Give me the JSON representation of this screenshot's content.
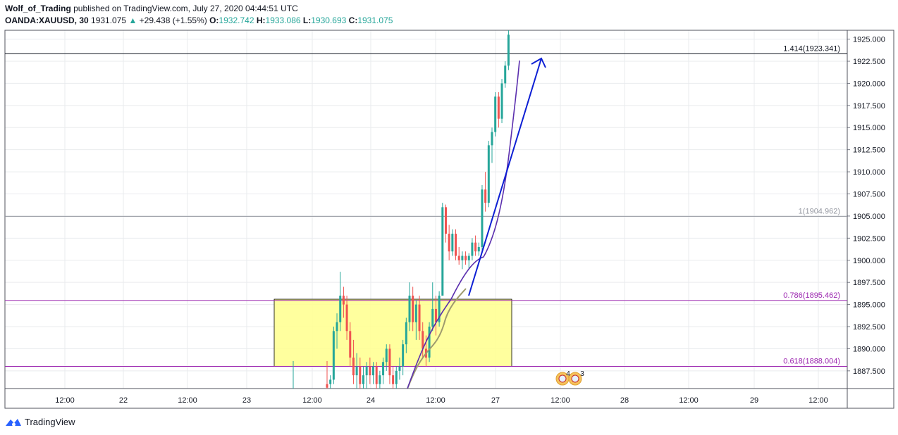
{
  "header": {
    "author": "Wolf_of_Trading",
    "published_text": " published on TradingView.com, July 27, 2020 04:44:51 UTC",
    "symbol": "OANDA:XAUUSD, 30",
    "last": "1931.075",
    "change_arrow": "▲",
    "change": "+29.438 (+1.55%)",
    "o_label": "O:",
    "open": "1932.742",
    "h_label": "H:",
    "high": "1933.086",
    "l_label": "L:",
    "low": "1930.693",
    "c_label": "C:",
    "close": "1931.075"
  },
  "footer": {
    "brand": "TradingView",
    "logo_icon": "tradingview-logo-icon"
  },
  "colors": {
    "up": "#26a69a",
    "down": "#ef5350",
    "ma_purple": "#5b2fae",
    "ma_gray": "#9e9a6e",
    "arrow": "#0d1fd4",
    "fib_purple": "#9c27b0",
    "zone_fill": "#ffff8d",
    "grid": "#e9ebee"
  },
  "chart_data": {
    "type": "candlestick",
    "symbol": "OANDA:XAUUSD",
    "timeframe": "30",
    "y_range": [
      1885.5,
      1926.0
    ],
    "y_ticks": [
      "1925.000",
      "1922.500",
      "1920.000",
      "1917.500",
      "1915.000",
      "1912.500",
      "1910.000",
      "1907.500",
      "1905.000",
      "1902.500",
      "1900.000",
      "1897.500",
      "1895.000",
      "1892.500",
      "1890.000",
      "1887.500"
    ],
    "x_ticks": [
      "12:00",
      "22",
      "12:00",
      "23",
      "12:00",
      "24",
      "12:00",
      "27",
      "12:00",
      "28",
      "12:00",
      "29",
      "12:00"
    ],
    "fib_levels": [
      {
        "ratio": "1.414",
        "price": 1923.341,
        "label": "1.414(1923.341)",
        "color": "#131722"
      },
      {
        "ratio": "1",
        "price": 1904.962,
        "label": "1(1904.962)",
        "color": "#9598a1"
      },
      {
        "ratio": "0.786",
        "price": 1895.462,
        "label": "0.786(1895.462)",
        "color": "#9c27b0"
      },
      {
        "ratio": "0.618",
        "price": 1888.004,
        "label": "0.618(1888.004)",
        "color": "#9c27b0"
      }
    ],
    "zone": {
      "price_top": 1895.6,
      "price_bottom": 1888.0,
      "x_start": "23 09:00",
      "x_end": "27 06:00"
    },
    "events": [
      {
        "text": "4"
      },
      {
        "text": "3"
      }
    ],
    "candles": [
      [
        1886.0,
        1888.6,
        1885.0,
        1885.6
      ],
      [
        1886.0,
        1887.0,
        1885.0,
        1886.5
      ],
      [
        1886.5,
        1892.5,
        1886.0,
        1892.0
      ],
      [
        1892.0,
        1894.0,
        1890.0,
        1893.0
      ],
      [
        1893.0,
        1898.7,
        1892.0,
        1896.0
      ],
      [
        1896.0,
        1897.0,
        1893.5,
        1895.0
      ],
      [
        1895.0,
        1896.0,
        1891.0,
        1892.0
      ],
      [
        1892.0,
        1893.0,
        1888.0,
        1889.0
      ],
      [
        1889.0,
        1891.0,
        1886.0,
        1887.0
      ],
      [
        1887.0,
        1889.5,
        1885.5,
        1888.0
      ],
      [
        1888.0,
        1889.0,
        1885.0,
        1886.0
      ],
      [
        1886.0,
        1888.0,
        1885.0,
        1887.0
      ],
      [
        1887.0,
        1888.5,
        1885.5,
        1888.0
      ],
      [
        1888.0,
        1889.0,
        1886.0,
        1887.0
      ],
      [
        1887.0,
        1888.5,
        1886.0,
        1888.0
      ],
      [
        1888.0,
        1888.5,
        1885.5,
        1886.0
      ],
      [
        1886.0,
        1887.5,
        1885.0,
        1887.0
      ],
      [
        1887.0,
        1889.0,
        1886.0,
        1888.5
      ],
      [
        1888.5,
        1890.5,
        1887.5,
        1890.0
      ],
      [
        1890.0,
        1890.5,
        1886.0,
        1887.0
      ],
      [
        1887.0,
        1888.0,
        1885.5,
        1886.0
      ],
      [
        1886.0,
        1888.0,
        1885.0,
        1887.5
      ],
      [
        1887.5,
        1889.0,
        1886.5,
        1888.0
      ],
      [
        1888.0,
        1891.0,
        1887.0,
        1890.5
      ],
      [
        1890.5,
        1893.5,
        1889.5,
        1893.0
      ],
      [
        1893.0,
        1897.5,
        1892.0,
        1896.0
      ],
      [
        1896.0,
        1897.0,
        1892.0,
        1893.0
      ],
      [
        1893.0,
        1895.5,
        1891.0,
        1895.0
      ],
      [
        1895.0,
        1896.0,
        1891.0,
        1892.0
      ],
      [
        1892.0,
        1893.0,
        1889.0,
        1890.0
      ],
      [
        1890.0,
        1891.5,
        1888.0,
        1889.0
      ],
      [
        1889.0,
        1893.0,
        1888.5,
        1892.5
      ],
      [
        1892.5,
        1897.5,
        1892.0,
        1894.5
      ],
      [
        1894.5,
        1896.0,
        1891.5,
        1893.0
      ],
      [
        1893.0,
        1896.5,
        1892.5,
        1896.0
      ],
      [
        1896.0,
        1906.5,
        1896.0,
        1906.0
      ],
      [
        1906.0,
        1906.3,
        1902.0,
        1903.0
      ],
      [
        1903.0,
        1904.0,
        1900.0,
        1901.0
      ],
      [
        1901.0,
        1903.5,
        1900.5,
        1903.0
      ],
      [
        1903.0,
        1903.5,
        1900.0,
        1900.5
      ],
      [
        1900.5,
        1901.5,
        1899.5,
        1900.0
      ],
      [
        1900.0,
        1901.0,
        1899.0,
        1900.5
      ],
      [
        1900.5,
        1901.0,
        1899.5,
        1900.0
      ],
      [
        1900.0,
        1900.8,
        1899.0,
        1900.5
      ],
      [
        1900.5,
        1902.5,
        1900.0,
        1902.0
      ],
      [
        1902.0,
        1902.8,
        1900.5,
        1901.0
      ],
      [
        1901.0,
        1902.0,
        1900.5,
        1901.5
      ],
      [
        1901.5,
        1908.5,
        1901.0,
        1908.0
      ],
      [
        1908.0,
        1910.0,
        1905.5,
        1906.5
      ],
      [
        1906.5,
        1913.5,
        1906.0,
        1913.0
      ],
      [
        1913.0,
        1915.0,
        1911.0,
        1914.5
      ],
      [
        1914.5,
        1919.0,
        1914.0,
        1918.5
      ],
      [
        1918.5,
        1919.0,
        1915.0,
        1916.0
      ],
      [
        1916.0,
        1920.5,
        1915.5,
        1920.0
      ],
      [
        1920.0,
        1922.5,
        1919.5,
        1922.0
      ],
      [
        1922.0,
        1926.0,
        1921.5,
        1925.5
      ]
    ]
  }
}
